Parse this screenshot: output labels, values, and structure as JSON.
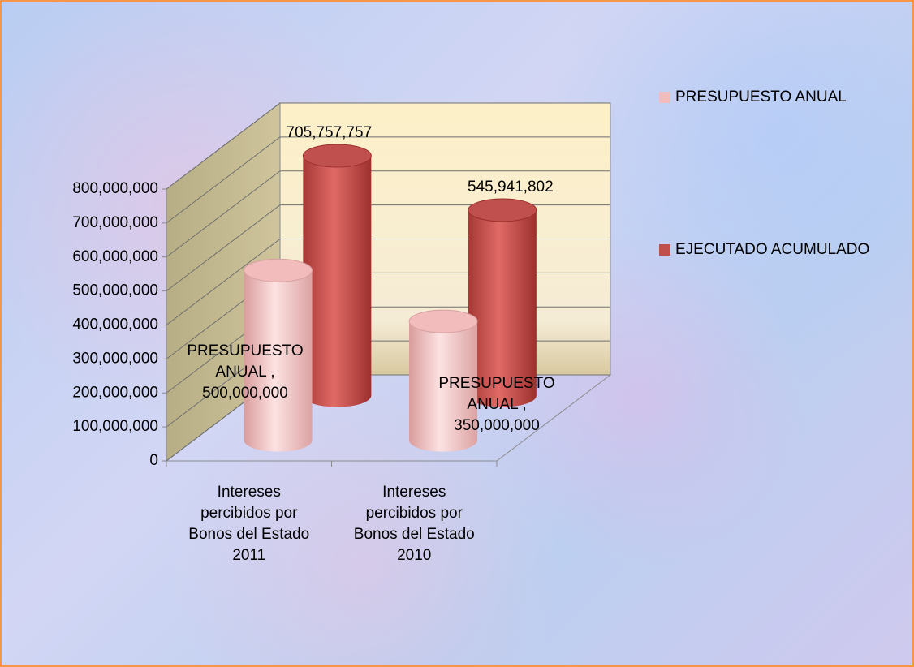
{
  "chart_data": {
    "type": "bar3d",
    "categories": [
      "Intereses percibidos por Bonos del Estado 2011",
      "Intereses percibidos por Bonos del Estado 2010"
    ],
    "series": [
      {
        "name": "PRESUPUESTO ANUAL",
        "color": "#f2bcbc",
        "values": [
          500000000,
          350000000
        ],
        "value_labels": [
          "PRESUPUESTO ANUAL , 500,000,000",
          "PRESUPUESTO ANUAL , 350,000,000"
        ]
      },
      {
        "name": "EJECUTADO ACUMULADO",
        "color": "#c0504d",
        "values": [
          705757757,
          545941802
        ],
        "value_labels": [
          "705,757,757",
          "545,941,802"
        ]
      }
    ],
    "ylim": [
      0,
      800000000
    ],
    "yticks": [
      0,
      {
        "value": 100000000,
        "label": "100,000,000"
      },
      {
        "value": 200000000,
        "label": "200,000,000"
      },
      {
        "value": 300000000,
        "label": "300,000,000"
      },
      {
        "value": 400000000,
        "label": "400,000,000"
      },
      {
        "value": 500000000,
        "label": "500,000,000"
      },
      {
        "value": 600000000,
        "label": "600,000,000"
      },
      {
        "value": 700000000,
        "label": "700,000,000"
      },
      {
        "value": 800000000,
        "label": "800,000,000"
      }
    ],
    "grid": true,
    "legend": "right"
  }
}
